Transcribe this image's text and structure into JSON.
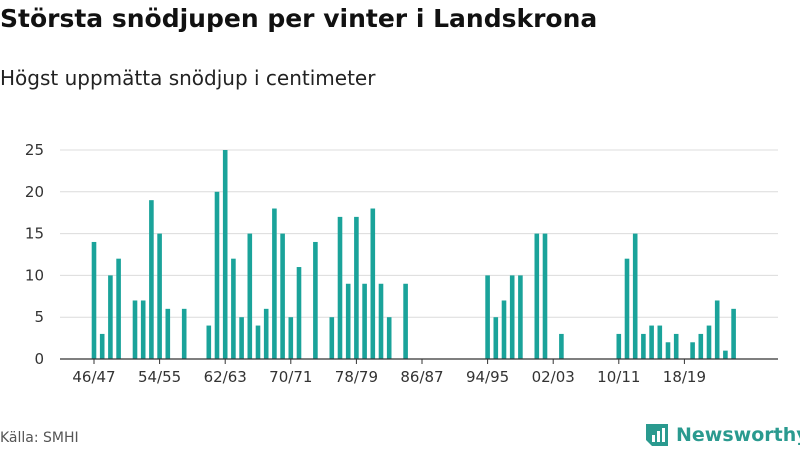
{
  "header": {
    "title": "Största snödjupen per vinter i Landskrona",
    "subtitle": "Högst uppmätta snödjup i centimeter"
  },
  "footer": {
    "source": "Källa: SMHI",
    "brand": "Newsworthy"
  },
  "colors": {
    "bar": "#1aa39a",
    "grid": "#dcdcdc",
    "axis": "#333333",
    "brand": "#2a9a8f"
  },
  "icons": {
    "brand_logo": "bar-chart-document-icon"
  },
  "chart_data": {
    "type": "bar",
    "title": "Största snödjupen per vinter i Landskrona",
    "subtitle": "Högst uppmätta snödjup i centimeter",
    "xlabel": "",
    "ylabel": "",
    "ylim": [
      0,
      25
    ],
    "yticks": [
      0,
      5,
      10,
      15,
      20,
      25
    ],
    "grid": true,
    "legend": "none",
    "categories": [
      "46/47",
      "47/48",
      "48/49",
      "49/50",
      "50/51",
      "51/52",
      "52/53",
      "53/54",
      "54/55",
      "55/56",
      "56/57",
      "57/58",
      "58/59",
      "59/60",
      "60/61",
      "61/62",
      "62/63",
      "63/64",
      "64/65",
      "65/66",
      "66/67",
      "67/68",
      "68/69",
      "69/70",
      "70/71",
      "71/72",
      "72/73",
      "73/74",
      "74/75",
      "75/76",
      "76/77",
      "77/78",
      "78/79",
      "79/80",
      "80/81",
      "81/82",
      "82/83",
      "83/84",
      "84/85",
      "85/86",
      "86/87",
      "87/88",
      "88/89",
      "89/90",
      "90/91",
      "91/92",
      "92/93",
      "93/94",
      "94/95",
      "95/96",
      "96/97",
      "97/98",
      "98/99",
      "99/00",
      "00/01",
      "01/02",
      "02/03",
      "03/04",
      "04/05",
      "05/06",
      "06/07",
      "07/08",
      "08/09",
      "09/10",
      "10/11",
      "11/12",
      "12/13",
      "13/14",
      "14/15",
      "15/16",
      "16/17",
      "17/18",
      "18/19",
      "19/20",
      "20/21",
      "21/22",
      "22/23",
      "23/24",
      "24/25",
      "25/26"
    ],
    "values": [
      14,
      3,
      10,
      12,
      null,
      7,
      7,
      19,
      15,
      6,
      null,
      6,
      null,
      null,
      4,
      20,
      25,
      12,
      5,
      15,
      4,
      6,
      18,
      15,
      5,
      11,
      null,
      14,
      null,
      5,
      17,
      9,
      17,
      9,
      18,
      9,
      5,
      null,
      9,
      null,
      null,
      null,
      null,
      null,
      null,
      null,
      null,
      null,
      10,
      5,
      7,
      10,
      10,
      null,
      15,
      15,
      null,
      3,
      null,
      null,
      null,
      null,
      null,
      null,
      3,
      12,
      15,
      3,
      4,
      4,
      2,
      3,
      null,
      2,
      3,
      4,
      7,
      1,
      6,
      null
    ],
    "xtick_labels": [
      "46/47",
      "54/55",
      "62/63",
      "70/71",
      "78/79",
      "86/87",
      "94/95",
      "02/03",
      "10/11",
      "18/19"
    ]
  }
}
